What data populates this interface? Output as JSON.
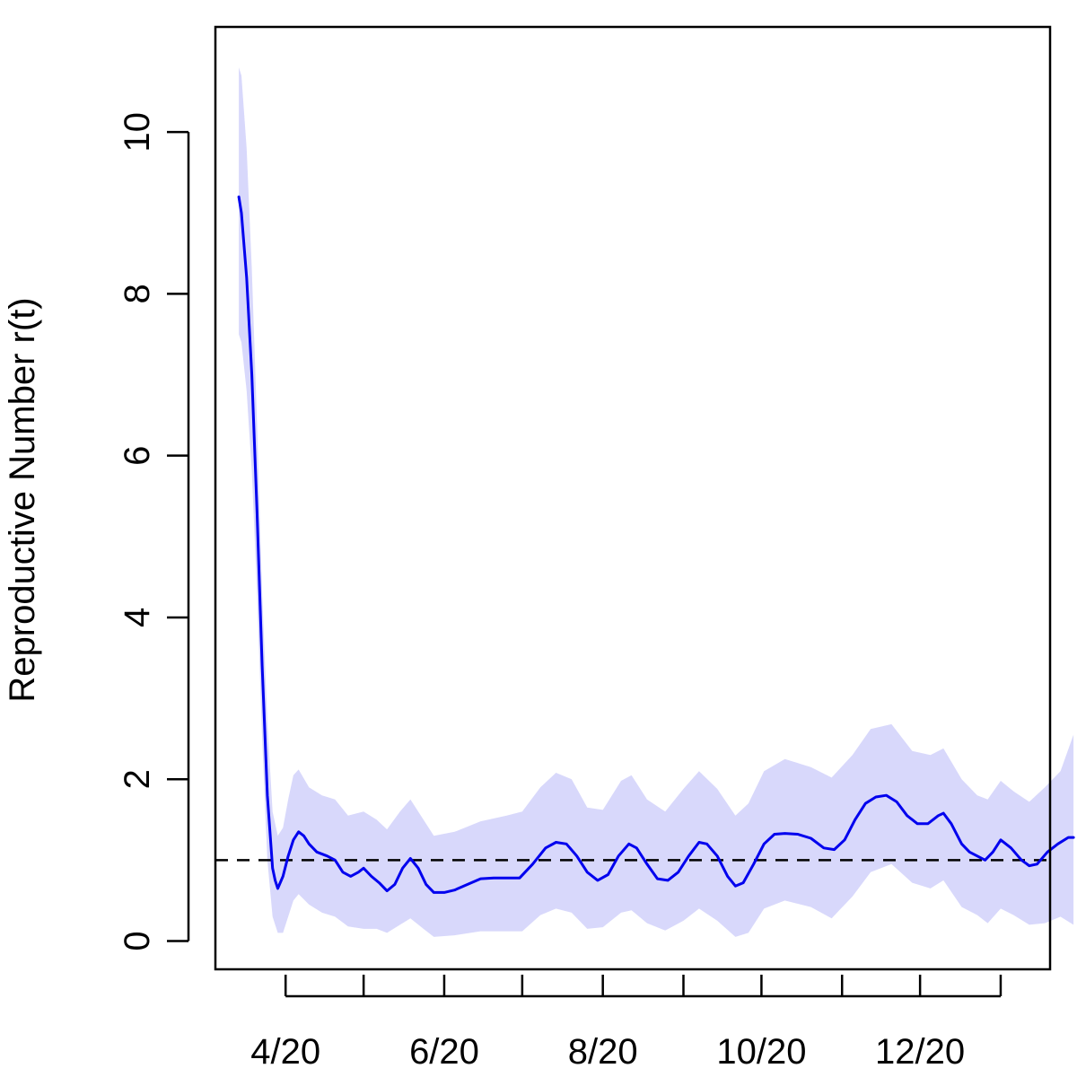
{
  "chart_data": {
    "type": "line",
    "title": "",
    "xlabel": "",
    "ylabel": "Reproductive Number r(t)",
    "ylim": [
      -0.35,
      11.3
    ],
    "xlim": [
      "2020-03-05",
      "2021-01-20"
    ],
    "x_ticks": [
      {
        "date": "2020-04-01",
        "label": "4/20"
      },
      {
        "date": "2020-05-01",
        "label": ""
      },
      {
        "date": "2020-06-01",
        "label": "6/20"
      },
      {
        "date": "2020-07-01",
        "label": ""
      },
      {
        "date": "2020-08-01",
        "label": "8/20"
      },
      {
        "date": "2020-09-01",
        "label": ""
      },
      {
        "date": "2020-10-01",
        "label": "10/20"
      },
      {
        "date": "2020-11-01",
        "label": ""
      },
      {
        "date": "2020-12-01",
        "label": "12/20"
      },
      {
        "date": "2021-01-01",
        "label": ""
      }
    ],
    "y_ticks": [
      0,
      2,
      4,
      6,
      8,
      10
    ],
    "reference_line": {
      "y": 1,
      "style": "dashed",
      "color": "#000000"
    },
    "grid": false,
    "colors": {
      "line": "#0000ee",
      "band": "#d8d8fb"
    },
    "series": [
      {
        "values": [
          [
            "2020-03-14",
            9.2
          ],
          [
            "2020-03-15",
            9.0
          ],
          [
            "2020-03-17",
            8.2
          ],
          [
            "2020-03-19",
            7.0
          ],
          [
            "2020-03-21",
            5.3
          ],
          [
            "2020-03-23",
            3.4
          ],
          [
            "2020-03-25",
            1.8
          ],
          [
            "2020-03-27",
            0.9
          ],
          [
            "2020-03-28",
            0.75
          ],
          [
            "2020-03-29",
            0.65
          ],
          [
            "2020-03-31",
            0.8
          ],
          [
            "2020-04-02",
            1.05
          ],
          [
            "2020-04-04",
            1.25
          ],
          [
            "2020-04-06",
            1.35
          ],
          [
            "2020-04-08",
            1.3
          ],
          [
            "2020-04-10",
            1.2
          ],
          [
            "2020-04-13",
            1.1
          ],
          [
            "2020-04-17",
            1.05
          ],
          [
            "2020-04-20",
            1.0
          ],
          [
            "2020-04-23",
            0.85
          ],
          [
            "2020-04-26",
            0.8
          ],
          [
            "2020-04-29",
            0.85
          ],
          [
            "2020-05-01",
            0.9
          ],
          [
            "2020-05-04",
            0.8
          ],
          [
            "2020-05-07",
            0.72
          ],
          [
            "2020-05-10",
            0.62
          ],
          [
            "2020-05-13",
            0.7
          ],
          [
            "2020-05-16",
            0.9
          ],
          [
            "2020-05-19",
            1.02
          ],
          [
            "2020-05-22",
            0.9
          ],
          [
            "2020-05-25",
            0.7
          ],
          [
            "2020-05-28",
            0.6
          ],
          [
            "2020-06-01",
            0.6
          ],
          [
            "2020-06-05",
            0.63
          ],
          [
            "2020-06-10",
            0.7
          ],
          [
            "2020-06-15",
            0.77
          ],
          [
            "2020-06-20",
            0.78
          ],
          [
            "2020-06-25",
            0.78
          ],
          [
            "2020-06-30",
            0.78
          ],
          [
            "2020-07-05",
            0.95
          ],
          [
            "2020-07-10",
            1.15
          ],
          [
            "2020-07-14",
            1.22
          ],
          [
            "2020-07-18",
            1.2
          ],
          [
            "2020-07-22",
            1.05
          ],
          [
            "2020-07-26",
            0.85
          ],
          [
            "2020-07-30",
            0.75
          ],
          [
            "2020-08-03",
            0.82
          ],
          [
            "2020-08-07",
            1.05
          ],
          [
            "2020-08-11",
            1.2
          ],
          [
            "2020-08-14",
            1.15
          ],
          [
            "2020-08-18",
            0.95
          ],
          [
            "2020-08-22",
            0.77
          ],
          [
            "2020-08-26",
            0.75
          ],
          [
            "2020-08-30",
            0.85
          ],
          [
            "2020-09-03",
            1.05
          ],
          [
            "2020-09-07",
            1.22
          ],
          [
            "2020-09-10",
            1.2
          ],
          [
            "2020-09-14",
            1.05
          ],
          [
            "2020-09-18",
            0.8
          ],
          [
            "2020-09-21",
            0.68
          ],
          [
            "2020-09-24",
            0.72
          ],
          [
            "2020-09-28",
            0.95
          ],
          [
            "2020-10-02",
            1.2
          ],
          [
            "2020-10-06",
            1.32
          ],
          [
            "2020-10-10",
            1.33
          ],
          [
            "2020-10-15",
            1.32
          ],
          [
            "2020-10-20",
            1.27
          ],
          [
            "2020-10-25",
            1.15
          ],
          [
            "2020-10-29",
            1.13
          ],
          [
            "2020-11-02",
            1.25
          ],
          [
            "2020-11-06",
            1.5
          ],
          [
            "2020-11-10",
            1.7
          ],
          [
            "2020-11-14",
            1.78
          ],
          [
            "2020-11-18",
            1.8
          ],
          [
            "2020-11-22",
            1.72
          ],
          [
            "2020-11-26",
            1.55
          ],
          [
            "2020-11-30",
            1.45
          ],
          [
            "2020-12-04",
            1.45
          ],
          [
            "2020-12-08",
            1.55
          ],
          [
            "2020-12-10",
            1.58
          ],
          [
            "2020-12-13",
            1.45
          ],
          [
            "2020-12-17",
            1.2
          ],
          [
            "2020-12-20",
            1.1
          ],
          [
            "2020-12-23",
            1.05
          ],
          [
            "2020-12-26",
            1.0
          ],
          [
            "2020-12-29",
            1.1
          ],
          [
            "2021-01-01",
            1.25
          ],
          [
            "2021-01-05",
            1.15
          ],
          [
            "2021-01-09",
            1.0
          ],
          [
            "2021-01-12",
            0.93
          ],
          [
            "2021-01-15",
            0.95
          ],
          [
            "2021-01-19",
            1.1
          ],
          [
            "2021-01-23",
            1.2
          ],
          [
            "2021-01-27",
            1.28
          ],
          [
            "2021-01-29",
            1.28
          ]
        ],
        "lower": [
          [
            "2020-03-14",
            7.5
          ],
          [
            "2020-03-15",
            7.4
          ],
          [
            "2020-03-17",
            6.8
          ],
          [
            "2020-03-19",
            5.8
          ],
          [
            "2020-03-21",
            4.3
          ],
          [
            "2020-03-23",
            2.5
          ],
          [
            "2020-03-25",
            1.0
          ],
          [
            "2020-03-27",
            0.3
          ],
          [
            "2020-03-29",
            0.1
          ],
          [
            "2020-03-31",
            0.1
          ],
          [
            "2020-04-02",
            0.3
          ],
          [
            "2020-04-04",
            0.5
          ],
          [
            "2020-04-06",
            0.58
          ],
          [
            "2020-04-10",
            0.45
          ],
          [
            "2020-04-15",
            0.35
          ],
          [
            "2020-04-20",
            0.3
          ],
          [
            "2020-04-25",
            0.18
          ],
          [
            "2020-05-01",
            0.15
          ],
          [
            "2020-05-06",
            0.15
          ],
          [
            "2020-05-10",
            0.1
          ],
          [
            "2020-05-15",
            0.2
          ],
          [
            "2020-05-19",
            0.28
          ],
          [
            "2020-05-24",
            0.15
          ],
          [
            "2020-05-28",
            0.05
          ],
          [
            "2020-06-05",
            0.07
          ],
          [
            "2020-06-15",
            0.12
          ],
          [
            "2020-06-25",
            0.12
          ],
          [
            "2020-07-01",
            0.12
          ],
          [
            "2020-07-08",
            0.32
          ],
          [
            "2020-07-14",
            0.4
          ],
          [
            "2020-07-20",
            0.35
          ],
          [
            "2020-07-26",
            0.15
          ],
          [
            "2020-08-01",
            0.17
          ],
          [
            "2020-08-08",
            0.35
          ],
          [
            "2020-08-12",
            0.38
          ],
          [
            "2020-08-18",
            0.22
          ],
          [
            "2020-08-25",
            0.13
          ],
          [
            "2020-09-01",
            0.25
          ],
          [
            "2020-09-07",
            0.4
          ],
          [
            "2020-09-14",
            0.25
          ],
          [
            "2020-09-21",
            0.05
          ],
          [
            "2020-09-26",
            0.1
          ],
          [
            "2020-10-02",
            0.4
          ],
          [
            "2020-10-10",
            0.5
          ],
          [
            "2020-10-20",
            0.42
          ],
          [
            "2020-10-28",
            0.28
          ],
          [
            "2020-11-05",
            0.55
          ],
          [
            "2020-11-12",
            0.85
          ],
          [
            "2020-11-20",
            0.95
          ],
          [
            "2020-11-28",
            0.72
          ],
          [
            "2020-12-05",
            0.65
          ],
          [
            "2020-12-10",
            0.75
          ],
          [
            "2020-12-17",
            0.42
          ],
          [
            "2020-12-23",
            0.32
          ],
          [
            "2020-12-27",
            0.22
          ],
          [
            "2021-01-01",
            0.4
          ],
          [
            "2021-01-06",
            0.32
          ],
          [
            "2021-01-12",
            0.2
          ],
          [
            "2021-01-18",
            0.22
          ],
          [
            "2021-01-24",
            0.3
          ],
          [
            "2021-01-29",
            0.2
          ]
        ],
        "upper": [
          [
            "2020-03-14",
            10.8
          ],
          [
            "2020-03-15",
            10.7
          ],
          [
            "2020-03-17",
            9.8
          ],
          [
            "2020-03-19",
            8.3
          ],
          [
            "2020-03-21",
            6.4
          ],
          [
            "2020-03-23",
            4.3
          ],
          [
            "2020-03-25",
            2.7
          ],
          [
            "2020-03-27",
            1.6
          ],
          [
            "2020-03-29",
            1.3
          ],
          [
            "2020-03-31",
            1.4
          ],
          [
            "2020-04-02",
            1.75
          ],
          [
            "2020-04-04",
            2.05
          ],
          [
            "2020-04-06",
            2.12
          ],
          [
            "2020-04-10",
            1.9
          ],
          [
            "2020-04-15",
            1.8
          ],
          [
            "2020-04-20",
            1.75
          ],
          [
            "2020-04-25",
            1.55
          ],
          [
            "2020-05-01",
            1.6
          ],
          [
            "2020-05-06",
            1.5
          ],
          [
            "2020-05-10",
            1.38
          ],
          [
            "2020-05-15",
            1.6
          ],
          [
            "2020-05-19",
            1.75
          ],
          [
            "2020-05-24",
            1.5
          ],
          [
            "2020-05-28",
            1.3
          ],
          [
            "2020-06-05",
            1.35
          ],
          [
            "2020-06-15",
            1.48
          ],
          [
            "2020-06-25",
            1.55
          ],
          [
            "2020-07-01",
            1.6
          ],
          [
            "2020-07-08",
            1.9
          ],
          [
            "2020-07-14",
            2.08
          ],
          [
            "2020-07-20",
            2.0
          ],
          [
            "2020-07-26",
            1.65
          ],
          [
            "2020-08-01",
            1.62
          ],
          [
            "2020-08-08",
            1.98
          ],
          [
            "2020-08-12",
            2.05
          ],
          [
            "2020-08-18",
            1.75
          ],
          [
            "2020-08-25",
            1.6
          ],
          [
            "2020-09-01",
            1.88
          ],
          [
            "2020-09-07",
            2.1
          ],
          [
            "2020-09-14",
            1.88
          ],
          [
            "2020-09-21",
            1.55
          ],
          [
            "2020-09-26",
            1.7
          ],
          [
            "2020-10-02",
            2.1
          ],
          [
            "2020-10-10",
            2.25
          ],
          [
            "2020-10-20",
            2.15
          ],
          [
            "2020-10-28",
            2.02
          ],
          [
            "2020-11-05",
            2.3
          ],
          [
            "2020-11-12",
            2.62
          ],
          [
            "2020-11-20",
            2.68
          ],
          [
            "2020-11-28",
            2.35
          ],
          [
            "2020-12-05",
            2.3
          ],
          [
            "2020-12-10",
            2.38
          ],
          [
            "2020-12-17",
            2.0
          ],
          [
            "2020-12-23",
            1.8
          ],
          [
            "2020-12-27",
            1.75
          ],
          [
            "2021-01-01",
            1.98
          ],
          [
            "2021-01-06",
            1.85
          ],
          [
            "2021-01-12",
            1.72
          ],
          [
            "2021-01-18",
            1.9
          ],
          [
            "2021-01-24",
            2.1
          ],
          [
            "2021-01-29",
            2.55
          ]
        ]
      }
    ]
  }
}
